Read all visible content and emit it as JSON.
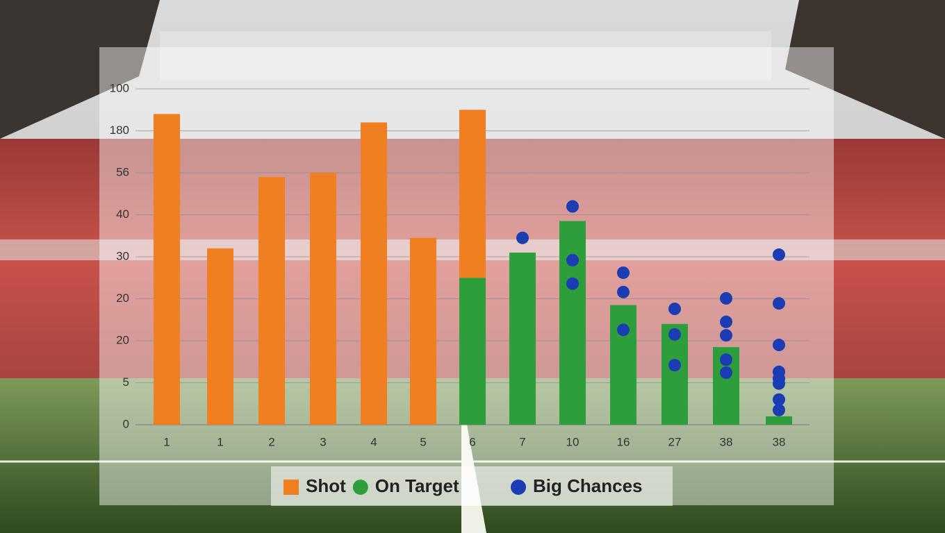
{
  "chart_data": {
    "type": "bar",
    "categories": [
      "1",
      "1",
      "2",
      "3",
      "4",
      "5",
      "6",
      "7",
      "10",
      "16",
      "27",
      "38",
      "38"
    ],
    "ylim": [
      0,
      8
    ],
    "yticks": [
      {
        "value": 0,
        "label": "0"
      },
      {
        "value": 1,
        "label": "5"
      },
      {
        "value": 2,
        "label": "20"
      },
      {
        "value": 3,
        "label": "20"
      },
      {
        "value": 4,
        "label": "30"
      },
      {
        "value": 5,
        "label": "40"
      },
      {
        "value": 6,
        "label": "56"
      },
      {
        "value": 7,
        "label": "180"
      },
      {
        "value": 8,
        "label": "100"
      }
    ],
    "grid": true,
    "stacked": true,
    "series": [
      {
        "name": "On Target",
        "color": "#2e9e3c",
        "values": [
          null,
          null,
          null,
          null,
          null,
          null,
          3.5,
          4.1,
          4.85,
          2.85,
          2.4,
          1.85,
          0.2
        ]
      },
      {
        "name": "Shot",
        "color": "#f07f22",
        "values": [
          7.4,
          4.2,
          5.9,
          6.0,
          7.2,
          4.45,
          4.0,
          null,
          null,
          null,
          null,
          null,
          null
        ]
      }
    ],
    "scatter_series": [
      {
        "name": "Big Chances",
        "color": "#1a3db4",
        "type": "scatter",
        "x": [
          7,
          8,
          8,
          8,
          9,
          9,
          9,
          10,
          10,
          10,
          11,
          11,
          11,
          11,
          11,
          12,
          12,
          12,
          12,
          12,
          12,
          12,
          12
        ],
        "values": [
          4.45,
          5.2,
          3.92,
          3.36,
          3.62,
          3.16,
          2.26,
          2.76,
          2.15,
          1.42,
          3.01,
          2.45,
          2.13,
          1.55,
          1.24,
          4.05,
          2.89,
          1.9,
          1.26,
          1.1,
          0.98,
          0.6,
          0.35
        ]
      }
    ],
    "legend_position": "bottom"
  }
}
